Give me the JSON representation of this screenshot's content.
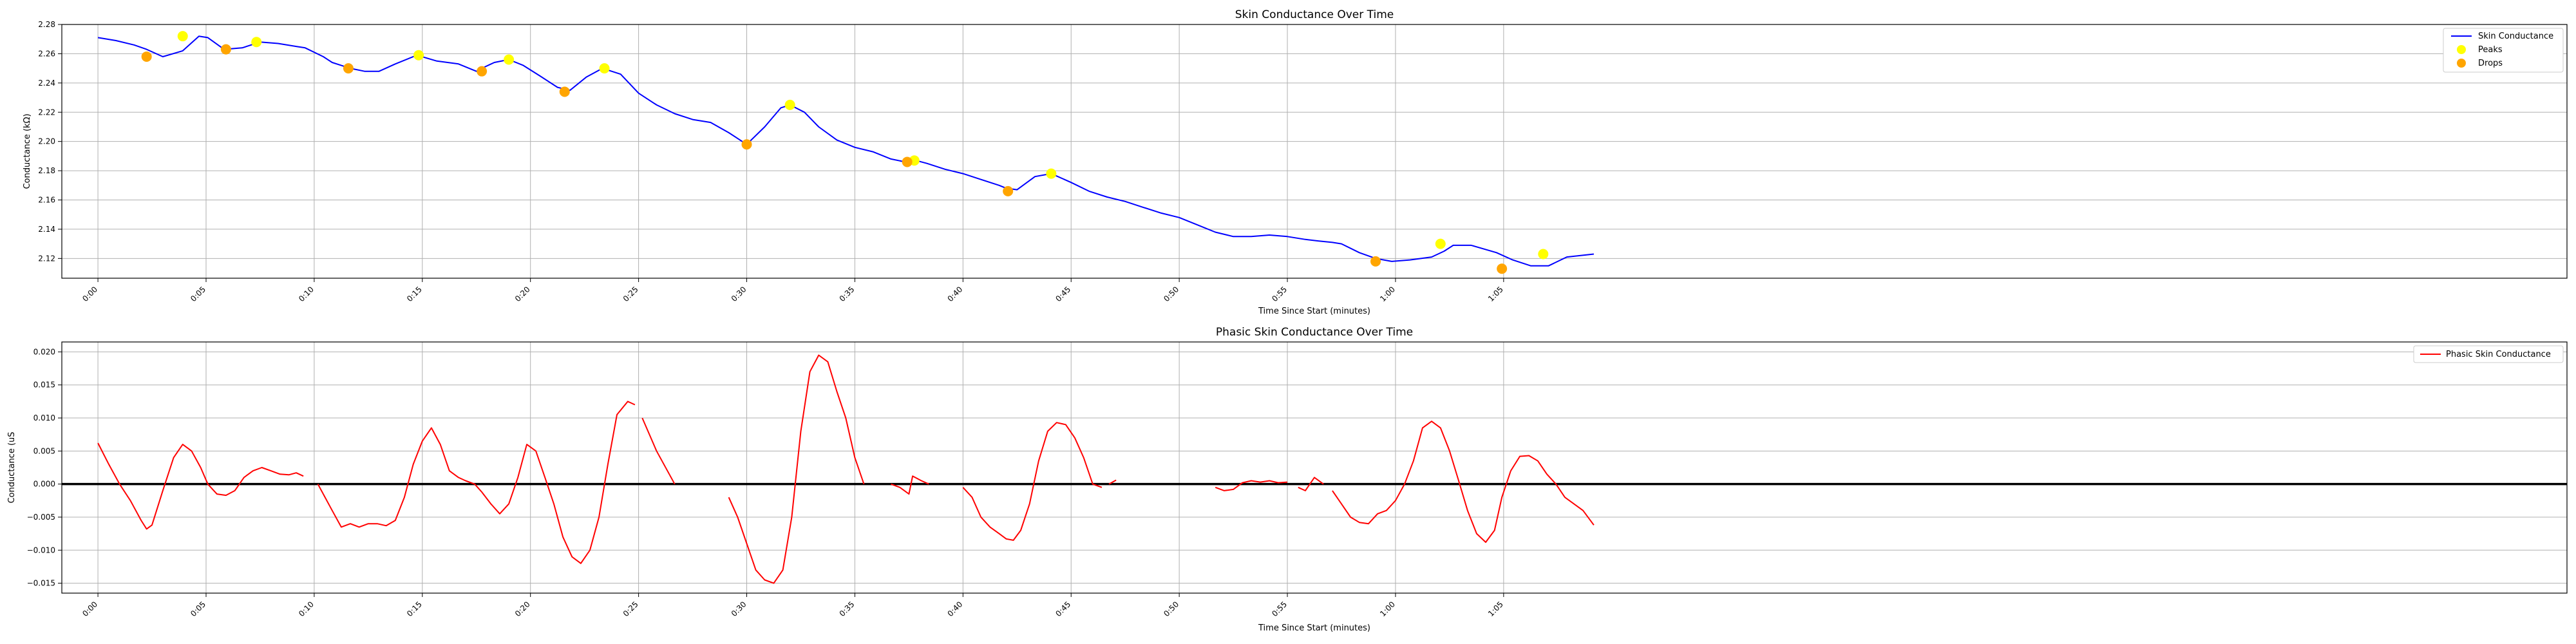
{
  "chart_data": [
    {
      "type": "line",
      "title": "Skin Conductance Over Time",
      "xlabel": "Time Since Start (minutes)",
      "ylabel": "Conductance (kΩ)",
      "xlim": [
        -0.0167,
        1.1417
      ],
      "ylim": [
        2.1065,
        2.28
      ],
      "x_ticks": [
        0.0,
        0.05,
        0.1,
        0.15,
        0.2,
        0.25,
        0.3,
        0.35,
        0.4,
        0.45,
        0.5,
        0.55,
        0.6,
        0.65
      ],
      "x_tick_labels": [
        "0:00",
        "0:05",
        "0:10",
        "0:15",
        "0:20",
        "0:25",
        "0:30",
        "0:35",
        "0:40",
        "0:45",
        "0:50",
        "0:55",
        "1:00",
        "1:05"
      ],
      "y_ticks": [
        2.12,
        2.14,
        2.16,
        2.18,
        2.2,
        2.22,
        2.24,
        2.26,
        2.28
      ],
      "y_tick_labels": [
        "2.12",
        "2.14",
        "2.16",
        "2.18",
        "2.20",
        "2.22",
        "2.24",
        "2.26",
        "2.28"
      ],
      "grid": true,
      "legend_position": "top-right",
      "series": [
        {
          "name": "Skin Conductance",
          "kind": "line",
          "color": "#0000ff",
          "x": [
            0.0,
            0.0083,
            0.0167,
            0.0225,
            0.03,
            0.0392,
            0.0467,
            0.0508,
            0.0583,
            0.0667,
            0.075,
            0.0833,
            0.0917,
            0.0958,
            0.1042,
            0.1083,
            0.1125,
            0.1167,
            0.1233,
            0.13,
            0.1375,
            0.1475,
            0.1567,
            0.1667,
            0.175,
            0.1775,
            0.1833,
            0.19,
            0.1967,
            0.2042,
            0.2125,
            0.2183,
            0.2258,
            0.2333,
            0.2417,
            0.25,
            0.2583,
            0.2667,
            0.275,
            0.2833,
            0.2917,
            0.3,
            0.3083,
            0.3158,
            0.32,
            0.3267,
            0.3333,
            0.3417,
            0.35,
            0.3583,
            0.3667,
            0.3733,
            0.3783,
            0.3833,
            0.3917,
            0.4,
            0.4083,
            0.4167,
            0.42,
            0.425,
            0.4333,
            0.4408,
            0.45,
            0.4583,
            0.4667,
            0.475,
            0.4833,
            0.4917,
            0.5,
            0.5083,
            0.5167,
            0.525,
            0.5333,
            0.5417,
            0.55,
            0.5583,
            0.5642,
            0.5708,
            0.575,
            0.5833,
            0.5908,
            0.5983,
            0.6067,
            0.6167,
            0.6225,
            0.6267,
            0.635,
            0.6467,
            0.6542,
            0.6625,
            0.6708,
            0.6792,
            0.6917
          ],
          "y": [
            2.271,
            2.269,
            2.266,
            2.263,
            2.258,
            2.262,
            2.272,
            2.271,
            2.263,
            2.264,
            2.268,
            2.267,
            2.265,
            2.264,
            2.258,
            2.254,
            2.252,
            2.25,
            2.248,
            2.248,
            2.253,
            2.259,
            2.255,
            2.253,
            2.248,
            2.25,
            2.254,
            2.256,
            2.252,
            2.245,
            2.237,
            2.235,
            2.244,
            2.25,
            2.246,
            2.233,
            2.225,
            2.219,
            2.215,
            2.213,
            2.206,
            2.198,
            2.21,
            2.223,
            2.225,
            2.22,
            2.21,
            2.201,
            2.196,
            2.193,
            2.188,
            2.186,
            2.187,
            2.185,
            2.181,
            2.178,
            2.174,
            2.17,
            2.168,
            2.167,
            2.176,
            2.178,
            2.172,
            2.166,
            2.162,
            2.159,
            2.155,
            2.151,
            2.148,
            2.143,
            2.138,
            2.135,
            2.135,
            2.136,
            2.135,
            2.133,
            2.132,
            2.131,
            2.13,
            2.124,
            2.12,
            2.118,
            2.119,
            2.121,
            2.125,
            2.129,
            2.129,
            2.124,
            2.119,
            2.115,
            2.115,
            2.121,
            2.123
          ]
        },
        {
          "name": "Peaks",
          "kind": "scatter",
          "color": "#ffff00",
          "x": [
            0.0392,
            0.0733,
            0.1483,
            0.19,
            0.2342,
            0.32,
            0.3775,
            0.4408,
            0.6208,
            0.6683
          ],
          "y": [
            2.272,
            2.268,
            2.259,
            2.256,
            2.25,
            2.225,
            2.187,
            2.178,
            2.13,
            2.123
          ]
        },
        {
          "name": "Drops",
          "kind": "scatter",
          "color": "#ffa500",
          "x": [
            0.0225,
            0.0592,
            0.1158,
            0.1775,
            0.2158,
            0.3,
            0.3742,
            0.4208,
            0.5908,
            0.6492
          ],
          "y": [
            2.258,
            2.263,
            2.25,
            2.248,
            2.234,
            2.198,
            2.186,
            2.166,
            2.118,
            2.113
          ]
        }
      ]
    },
    {
      "type": "line",
      "title": "Phasic Skin Conductance Over Time",
      "xlabel": "Time Since Start (minutes)",
      "ylabel": "Conductance (uS",
      "xlim": [
        -0.0167,
        1.1417
      ],
      "ylim": [
        -0.0165,
        0.0215
      ],
      "x_ticks": [
        0.0,
        0.05,
        0.1,
        0.15,
        0.2,
        0.25,
        0.3,
        0.35,
        0.4,
        0.45,
        0.5,
        0.55,
        0.6,
        0.65
      ],
      "x_tick_labels": [
        "0:00",
        "0:05",
        "0:10",
        "0:15",
        "0:20",
        "0:25",
        "0:30",
        "0:35",
        "0:40",
        "0:45",
        "0:50",
        "0:55",
        "1:00",
        "1:05"
      ],
      "y_ticks": [
        -0.015,
        -0.01,
        -0.005,
        0.0,
        0.005,
        0.01,
        0.015,
        0.02
      ],
      "y_tick_labels": [
        "−0.015",
        "−0.010",
        "−0.005",
        "0.000",
        "0.005",
        "0.010",
        "0.015",
        "0.020"
      ],
      "grid": true,
      "legend_position": "top-right",
      "reference_line_y": 0.0,
      "series": [
        {
          "name": "Phasic Skin Conductance",
          "color": "#ff0000",
          "segments": [
            {
              "x": [
                0.0,
                0.005,
                0.01,
                0.015,
                0.02,
                0.0225,
                0.025,
                0.03,
                0.035,
                0.0392,
                0.0433,
                0.0475,
                0.0508,
                0.055,
                0.0592,
                0.0633,
                0.0675,
                0.0717,
                0.0758,
                0.08,
                0.0842,
                0.0883,
                0.0917,
                0.095
              ],
              "y": [
                0.0062,
                0.003,
                0.0,
                -0.0025,
                -0.0055,
                -0.0068,
                -0.0062,
                -0.001,
                0.004,
                0.006,
                0.005,
                0.0025,
                0.0,
                -0.0015,
                -0.0017,
                -0.001,
                0.001,
                0.002,
                0.0025,
                0.002,
                0.0015,
                0.0014,
                0.0017,
                0.0012
              ]
            },
            {
              "x": [
                0.1017,
                0.1083,
                0.1125,
                0.1167,
                0.1208,
                0.125,
                0.1292,
                0.1333,
                0.1375,
                0.1417,
                0.1458,
                0.15,
                0.1542,
                0.1583,
                0.1625,
                0.1667,
                0.17,
                0.1742,
                0.1775,
                0.1817,
                0.1858,
                0.19,
                0.1942,
                0.1983,
                0.2025,
                0.2067,
                0.2108,
                0.215,
                0.2192,
                0.2233,
                0.2275,
                0.2317,
                0.2358,
                0.24,
                0.245,
                0.2483
              ],
              "y": [
                0.0,
                -0.004,
                -0.0065,
                -0.006,
                -0.0065,
                -0.006,
                -0.006,
                -0.0063,
                -0.0055,
                -0.002,
                0.003,
                0.0065,
                0.0085,
                0.006,
                0.002,
                0.001,
                0.0005,
                0.0,
                -0.0012,
                -0.003,
                -0.0045,
                -0.003,
                0.001,
                0.006,
                0.005,
                0.001,
                -0.003,
                -0.008,
                -0.011,
                -0.012,
                -0.01,
                -0.005,
                0.003,
                0.0105,
                0.0125,
                0.012
              ]
            },
            {
              "x": [
                0.2517,
                0.2583,
                0.2667
              ],
              "y": [
                0.01,
                0.005,
                0.0
              ]
            },
            {
              "x": [
                0.2917,
                0.2958,
                0.3,
                0.3042,
                0.3083,
                0.3125,
                0.3167,
                0.3208,
                0.325,
                0.3292,
                0.3333,
                0.3375,
                0.3417,
                0.3458,
                0.35,
                0.3542
              ],
              "y": [
                -0.002,
                -0.005,
                -0.009,
                -0.013,
                -0.0145,
                -0.015,
                -0.013,
                -0.005,
                0.008,
                0.017,
                0.0195,
                0.0185,
                0.014,
                0.01,
                0.004,
                0.0
              ]
            },
            {
              "x": [
                0.3667,
                0.3708,
                0.375,
                0.3767,
                0.3808,
                0.3842
              ],
              "y": [
                0.0,
                -0.0005,
                -0.0015,
                0.0012,
                0.0005,
                0.0
              ]
            },
            {
              "x": [
                0.4,
                0.4042,
                0.4083,
                0.4125,
                0.4167,
                0.42,
                0.4233,
                0.4267,
                0.4308,
                0.435,
                0.4392,
                0.4433,
                0.4475,
                0.4517,
                0.4558,
                0.46,
                0.4642
              ],
              "y": [
                -0.0005,
                -0.002,
                -0.005,
                -0.0065,
                -0.0075,
                -0.0083,
                -0.0085,
                -0.007,
                -0.003,
                0.0035,
                0.008,
                0.0093,
                0.009,
                0.007,
                0.004,
                0.0,
                -0.0005
              ]
            },
            {
              "x": [
                0.4675,
                0.4708
              ],
              "y": [
                0.0,
                0.0006
              ]
            },
            {
              "x": [
                0.5167,
                0.5208,
                0.525,
                0.5292,
                0.5333,
                0.5375,
                0.5417,
                0.5458,
                0.55
              ],
              "y": [
                -0.0005,
                -0.001,
                -0.0008,
                0.0002,
                0.0005,
                0.0003,
                0.0005,
                0.0002,
                0.0003
              ]
            },
            {
              "x": [
                0.555,
                0.5583,
                0.5625,
                0.5667
              ],
              "y": [
                -0.0005,
                -0.001,
                0.001,
                0.0
              ]
            },
            {
              "x": [
                0.5708,
                0.575,
                0.5792,
                0.5833,
                0.5875,
                0.5917,
                0.5958,
                0.6,
                0.6042,
                0.6083,
                0.6125,
                0.6167,
                0.6208,
                0.625,
                0.6292,
                0.6333,
                0.6375,
                0.6417,
                0.6458,
                0.6492,
                0.6533,
                0.6575,
                0.6617,
                0.6658,
                0.67,
                0.6742,
                0.6783,
                0.6825,
                0.6867,
                0.6917
              ],
              "y": [
                -0.001,
                -0.003,
                -0.005,
                -0.0058,
                -0.006,
                -0.0045,
                -0.004,
                -0.0025,
                0.0,
                0.0035,
                0.0085,
                0.0095,
                0.0085,
                0.005,
                0.0005,
                -0.004,
                -0.0075,
                -0.0088,
                -0.007,
                -0.002,
                0.002,
                0.0042,
                0.0043,
                0.0035,
                0.0015,
                0.0,
                -0.002,
                -0.003,
                -0.004,
                -0.0062
              ]
            }
          ]
        }
      ]
    }
  ]
}
